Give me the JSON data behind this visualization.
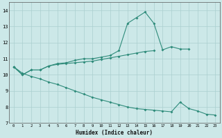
{
  "xlabel": "Humidex (Indice chaleur)",
  "x": [
    0,
    1,
    2,
    3,
    4,
    5,
    6,
    7,
    8,
    9,
    10,
    11,
    12,
    13,
    14,
    15,
    16,
    17,
    18,
    19,
    20,
    21,
    22,
    23
  ],
  "line_upper": [
    10.5,
    10.0,
    10.3,
    10.3,
    10.55,
    10.7,
    10.75,
    10.9,
    11.0,
    11.0,
    11.1,
    11.2,
    11.5,
    13.2,
    13.55,
    13.9,
    13.2,
    11.55,
    11.75,
    11.6,
    11.6,
    null,
    null,
    null
  ],
  "line_middle": [
    10.5,
    10.0,
    10.3,
    10.3,
    10.55,
    10.65,
    10.7,
    10.75,
    10.8,
    10.85,
    10.95,
    11.05,
    11.15,
    11.25,
    11.35,
    11.45,
    11.5,
    null,
    null,
    null,
    null,
    null,
    null,
    null
  ],
  "line_lower": [
    10.5,
    10.1,
    9.9,
    9.75,
    9.55,
    9.4,
    9.2,
    9.0,
    8.8,
    8.6,
    8.45,
    8.3,
    8.15,
    8.0,
    7.9,
    7.85,
    7.8,
    7.75,
    7.7,
    8.3,
    7.9,
    7.75,
    7.55,
    7.5
  ],
  "color": "#2e8b7a",
  "bg_color": "#cce8e8",
  "grid_color": "#aacfcf",
  "ylim": [
    7,
    14.5
  ],
  "xlim": [
    -0.5,
    23.5
  ],
  "yticks": [
    7,
    8,
    9,
    10,
    11,
    12,
    13,
    14
  ],
  "xticks": [
    0,
    1,
    2,
    3,
    4,
    5,
    6,
    7,
    8,
    9,
    10,
    11,
    12,
    13,
    14,
    15,
    16,
    17,
    18,
    19,
    20,
    21,
    22,
    23
  ]
}
